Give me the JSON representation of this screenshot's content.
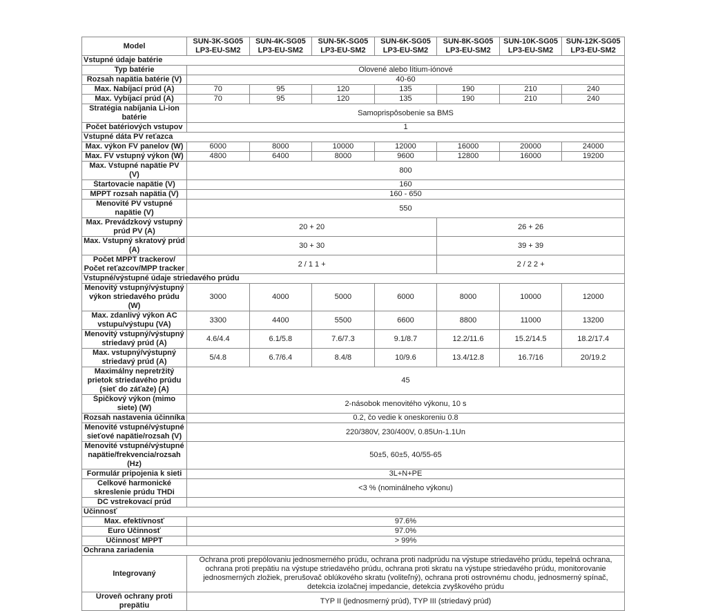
{
  "page": {
    "background_color": "#ffffff",
    "border_color": "#878787",
    "text_color": "#1c1c1c"
  },
  "table": {
    "header": {
      "model_label": "Model",
      "models": [
        "SUN-3K-SG05 LP3-EU-SM2",
        "SUN-4K-SG05 LP3-EU-SM2",
        "SUN-5K-SG05 LP3-EU-SM2",
        "SUN-6K-SG05 LP3-EU-SM2",
        "SUN-8K-SG05 LP3-EU-SM2",
        "SUN-10K-SG05 LP3-EU-SM2",
        "SUN-12K-SG05 LP3-EU-SM2"
      ]
    },
    "rows": [
      {
        "type": "section",
        "label": "Vstupné údaje batérie"
      },
      {
        "type": "span",
        "label": "Typ batérie",
        "value": "Olovené alebo lítium-iónové"
      },
      {
        "type": "span",
        "label": "Rozsah napätia batérie (V)",
        "value": "40-60"
      },
      {
        "type": "values7",
        "label": "Max. Nabíjací prúd (A)",
        "values": [
          "70",
          "95",
          "120",
          "135",
          "190",
          "210",
          "240"
        ]
      },
      {
        "type": "values7",
        "label": "Max. Vybíjací prúd (A)",
        "values": [
          "70",
          "95",
          "120",
          "135",
          "190",
          "210",
          "240"
        ]
      },
      {
        "type": "span",
        "label": "Stratégia nabíjania Li-ion batérie",
        "value": "Samoprispôsobenie sa BMS"
      },
      {
        "type": "span",
        "label": "Počet batériových vstupov",
        "value": "1"
      },
      {
        "type": "section",
        "label": "Vstupné dáta PV reťazca"
      },
      {
        "type": "values7",
        "label": "Max. výkon FV panelov (W)",
        "values": [
          "6000",
          "8000",
          "10000",
          "12000",
          "16000",
          "20000",
          "24000"
        ]
      },
      {
        "type": "values7",
        "label": "Max. FV vstupný výkon (W)",
        "values": [
          "4800",
          "6400",
          "8000",
          "9600",
          "12800",
          "16000",
          "19200"
        ]
      },
      {
        "type": "span",
        "label": "Max. Vstupné napätie PV (V)",
        "value": "800"
      },
      {
        "type": "span",
        "label": "Štartovacie napätie (V)",
        "value": "160"
      },
      {
        "type": "span",
        "label": "MPPT rozsah napätia (V)",
        "value": "160 - 650"
      },
      {
        "type": "span",
        "label": "Menovité PV vstupné napätie (V)",
        "value": "550"
      },
      {
        "type": "split",
        "label": "Max. Prevádzkový vstupný prúd PV (A)",
        "values": [
          "20 + 20",
          "26 + 26"
        ]
      },
      {
        "type": "split",
        "label": "Max. Vstupný skratový prúd (A)",
        "values": [
          "30 + 30",
          "39 + 39"
        ]
      },
      {
        "type": "split",
        "label": "Počet MPPT trackerov/ Počet reťazcov/MPP tracker",
        "values": [
          "2 / 1 1 +",
          "2 / 2 2 +"
        ]
      },
      {
        "type": "section",
        "label": "Vstupné/výstupné údaje striedavého prúdu"
      },
      {
        "type": "values7",
        "label": "Menovitý vstupný/výstupný výkon striedavého prúdu (W)",
        "values": [
          "3000",
          "4000",
          "5000",
          "6000",
          "8000",
          "10000",
          "12000"
        ]
      },
      {
        "type": "values7",
        "label": "Max. zdanlivý výkon AC vstupu/výstupu (VA)",
        "values": [
          "3300",
          "4400",
          "5500",
          "6600",
          "8800",
          "11000",
          "13200"
        ]
      },
      {
        "type": "values7",
        "label": "Menovitý vstupný/výstupný striedavý prúd (A)",
        "values": [
          "4.6/4.4",
          "6.1/5.8",
          "7.6/7.3",
          "9.1/8.7",
          "12.2/11.6",
          "15.2/14.5",
          "18.2/17.4"
        ]
      },
      {
        "type": "values7",
        "label": "Max. vstupný/výstupný striedavý prúd (A)",
        "values": [
          "5/4.8",
          "6.7/6.4",
          "8.4/8",
          "10/9.6",
          "13.4/12.8",
          "16.7/16",
          "20/19.2"
        ]
      },
      {
        "type": "span",
        "label": "Maximálny nepretržitý prietok striedavého prúdu (sieť do záťaže) (A)",
        "value": "45"
      },
      {
        "type": "span",
        "label": "Špičkový výkon (mimo siete) (W)",
        "value": "2-násobok menovitého výkonu, 10 s"
      },
      {
        "type": "span",
        "label": "Rozsah nastavenia účinníka",
        "value": "0.2, čo vedie k oneskoreniu 0.8"
      },
      {
        "type": "span",
        "label": "Menovité vstupné/výstupné sieťové napätie/rozsah (V)",
        "value": "220/380V, 230/400V, 0.85Un-1.1Un"
      },
      {
        "type": "span",
        "label": "Menovité vstupné/výstupné napätie/frekvencia/rozsah (Hz)",
        "value": "50±5, 60±5, 40/55-65"
      },
      {
        "type": "span",
        "label": "Formulár pripojenia k sieti",
        "value": "3L+N+PE"
      },
      {
        "type": "span",
        "label": "Celkové harmonické skreslenie prúdu THDi",
        "value": "<3 % (nominálneho výkonu)"
      },
      {
        "type": "span",
        "label": "DC vstrekovací prúd",
        "value": ""
      },
      {
        "type": "section",
        "label": "Účinnosť"
      },
      {
        "type": "span",
        "label": "Max. efektívnosť",
        "value": "97.6%"
      },
      {
        "type": "span",
        "label": "Euro Účinnosť",
        "value": "97.0%"
      },
      {
        "type": "span",
        "label": "Účinnosť MPPT",
        "value": "> 99%"
      },
      {
        "type": "section",
        "label": "Ochrana zariadenia"
      },
      {
        "type": "span",
        "label": "Integrovaný",
        "value": "Ochrana proti prepólovaniu jednosmerného prúdu, ochrana proti nadprúdu na výstupe striedavého prúdu, tepelná ochrana, ochrana proti prepätiu na výstupe striedavého prúdu, ochrana proti skratu na výstupe striedavého prúdu, monitorovanie jednosmerných zložiek, prerušovač oblúkového skratu (voliteľný), ochrana proti ostrovnému chodu, jednosmerný spínač, detekcia izolačnej impedancie, detekcia zvyškového prúdu"
      },
      {
        "type": "span",
        "label": "Úroveň ochrany proti prepätiu",
        "value": "TYP II (jednosmerný prúd), TYP III (striedavý prúd)"
      }
    ]
  }
}
